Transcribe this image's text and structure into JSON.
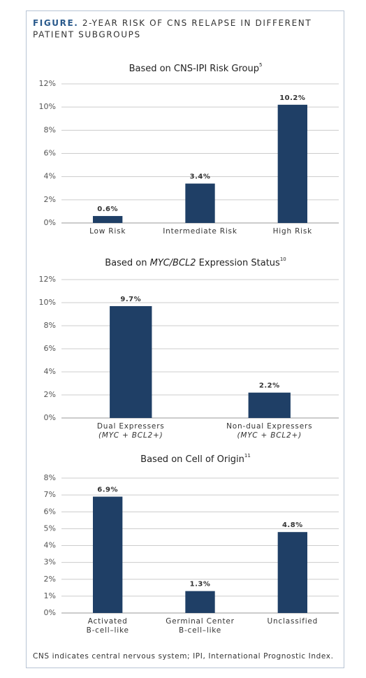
{
  "figure_label": "FIGURE.",
  "figure_title": [
    "2-YEAR RISK OF CNS RELAPSE IN DIFFERENT",
    "PATIENT SUBGROUPS"
  ],
  "footnote": "CNS indicates central nervous system; IPI, International Prognostic Index.",
  "chart_data": [
    {
      "type": "bar",
      "title": [
        "Based on CNS-IPI Risk Group"
      ],
      "title_note": "5",
      "categories": [
        [
          "Low Risk"
        ],
        [
          "Intermediate Risk"
        ],
        [
          "High Risk"
        ]
      ],
      "values": [
        0.6,
        3.4,
        10.2
      ],
      "value_labels": [
        "0.6%",
        "3.4%",
        "10.2%"
      ],
      "color": "#1f3f66",
      "ylim": [
        0,
        12
      ],
      "yticks": [
        {
          "value": 0,
          "label": "0%"
        },
        {
          "value": 2,
          "label": "2%"
        },
        {
          "value": 4,
          "label": "4%"
        },
        {
          "value": 6,
          "label": "6%"
        },
        {
          "value": 8,
          "label": "8%"
        },
        {
          "value": 10,
          "label": "10%"
        },
        {
          "value": 12,
          "label": "12%"
        }
      ],
      "grid": true
    },
    {
      "type": "bar",
      "title": [
        "Based on ",
        "MYC/BCL2",
        " Expression Status"
      ],
      "title_note": "10",
      "categories": [
        [
          "Dual Expressers",
          "(MYC + BCL2+)"
        ],
        [
          "Non-dual Expressers",
          "(MYC + BCL2+)"
        ]
      ],
      "values": [
        9.7,
        2.2
      ],
      "value_labels": [
        "9.7%",
        "2.2%"
      ],
      "color": "#1f3f66",
      "ylim": [
        0,
        12
      ],
      "yticks": [
        {
          "value": 0,
          "label": "0%"
        },
        {
          "value": 2,
          "label": "2%"
        },
        {
          "value": 4,
          "label": "4%"
        },
        {
          "value": 6,
          "label": "6%"
        },
        {
          "value": 8,
          "label": "8%"
        },
        {
          "value": 10,
          "label": "10%"
        },
        {
          "value": 12,
          "label": "12%"
        }
      ],
      "grid": true
    },
    {
      "type": "bar",
      "title": [
        "Based on Cell of  Origin"
      ],
      "title_note": "11",
      "categories": [
        [
          "Activated",
          "B-cell–like"
        ],
        [
          "Germinal Center",
          "B-cell–like"
        ],
        [
          "Unclassified"
        ]
      ],
      "values": [
        6.9,
        1.3,
        4.8
      ],
      "value_labels": [
        "6.9%",
        "1.3%",
        "4.8%"
      ],
      "color": "#1f3f66",
      "ylim": [
        0,
        8
      ],
      "yticks": [
        {
          "value": 0,
          "label": "0%"
        },
        {
          "value": 1,
          "label": "1%"
        },
        {
          "value": 2,
          "label": "2%"
        },
        {
          "value": 3,
          "label": "3%"
        },
        {
          "value": 4,
          "label": "4%"
        },
        {
          "value": 5,
          "label": "5%"
        },
        {
          "value": 6,
          "label": "6%"
        },
        {
          "value": 7,
          "label": "7%"
        },
        {
          "value": 8,
          "label": "8%"
        }
      ],
      "grid": true
    }
  ]
}
